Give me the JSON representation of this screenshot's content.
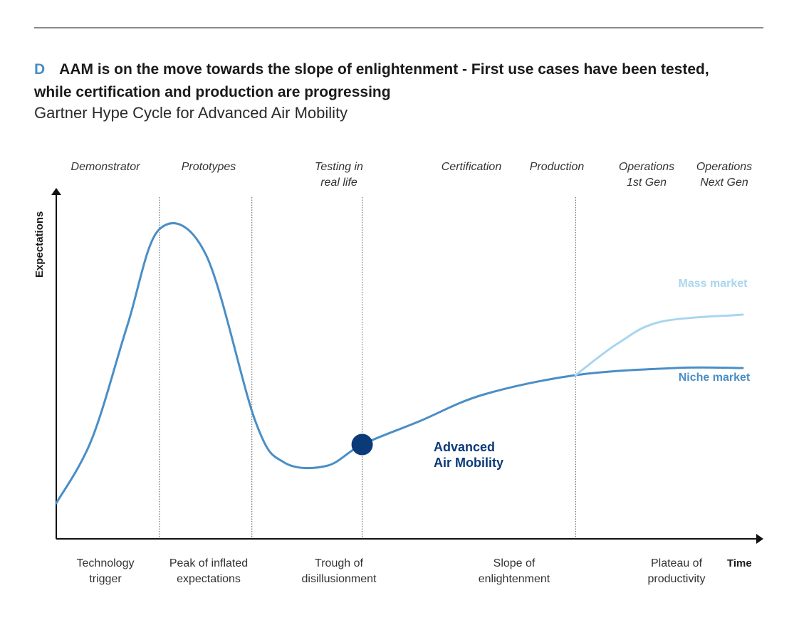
{
  "header": {
    "letter": "D",
    "title": "AAM is on the move towards the slope of enlightenment - First use cases have been tested, while certification and production are progressing",
    "subtitle": "Gartner Hype Cycle for Advanced Air Mobility"
  },
  "chart_data": {
    "type": "line",
    "title": "",
    "xlabel": "Time",
    "ylabel": "Expectations",
    "grid": false,
    "phases": [
      {
        "lines": [
          "Demonstrator"
        ]
      },
      {
        "lines": [
          "Prototypes"
        ]
      },
      {
        "lines": [
          "Testing in",
          "real life"
        ]
      },
      {
        "lines": [
          "Certification"
        ]
      },
      {
        "lines": [
          "Production"
        ]
      },
      {
        "lines": [
          "Operations",
          "1st Gen"
        ]
      },
      {
        "lines": [
          "Operations",
          "Next Gen"
        ]
      }
    ],
    "stages": [
      {
        "lines": [
          "Technology",
          "trigger"
        ]
      },
      {
        "lines": [
          "Peak of inflated",
          "expectations"
        ]
      },
      {
        "lines": [
          "Trough of",
          "disillusionment"
        ]
      },
      {
        "lines": [
          "Slope of",
          "enlightenment"
        ]
      },
      {
        "lines": [
          "Plateau of",
          "productivity"
        ]
      }
    ],
    "series": [
      {
        "name": "Niche market",
        "color": "#4a8ec6",
        "points": [
          [
            0,
            0.1
          ],
          [
            0.05,
            0.28
          ],
          [
            0.1,
            0.6
          ],
          [
            0.145,
            0.87
          ],
          [
            0.21,
            0.8
          ],
          [
            0.28,
            0.33
          ],
          [
            0.32,
            0.215
          ],
          [
            0.38,
            0.205
          ],
          [
            0.43,
            0.265
          ],
          [
            0.51,
            0.33
          ],
          [
            0.6,
            0.405
          ],
          [
            0.73,
            0.46
          ],
          [
            0.87,
            0.48
          ],
          [
            0.965,
            0.48
          ]
        ]
      },
      {
        "name": "Mass market",
        "color": "#a9d6ee",
        "points": [
          [
            0.73,
            0.46
          ],
          [
            0.79,
            0.55
          ],
          [
            0.85,
            0.61
          ],
          [
            0.965,
            0.63
          ]
        ]
      }
    ],
    "marker": {
      "label_lines": [
        "Advanced",
        "Air Mobility"
      ],
      "x": 0.43,
      "y": 0.265,
      "color": "#0b3a78"
    },
    "boundaries": [
      0.145,
      0.275,
      0.43,
      0.73
    ]
  }
}
